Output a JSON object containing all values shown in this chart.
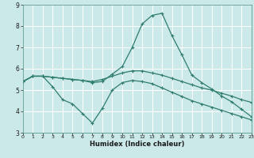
{
  "title": "",
  "xlabel": "Humidex (Indice chaleur)",
  "background_color": "#cce9e9",
  "grid_color": "#ffffff",
  "line_color": "#2e7d6e",
  "xlim": [
    0,
    23
  ],
  "ylim": [
    3,
    9
  ],
  "x_ticks": [
    0,
    1,
    2,
    3,
    4,
    5,
    6,
    7,
    8,
    9,
    10,
    11,
    12,
    13,
    14,
    15,
    16,
    17,
    18,
    19,
    20,
    21,
    22,
    23
  ],
  "y_ticks": [
    3,
    4,
    5,
    6,
    7,
    8,
    9
  ],
  "series": {
    "line1_x": [
      0,
      1,
      2,
      3,
      4,
      5,
      6,
      7,
      8,
      9,
      10,
      11,
      12,
      13,
      14,
      15,
      16,
      17,
      18,
      19,
      20,
      21,
      22,
      23
    ],
    "line1_y": [
      5.4,
      5.65,
      5.65,
      5.6,
      5.55,
      5.5,
      5.45,
      5.4,
      5.5,
      5.65,
      5.8,
      5.9,
      5.9,
      5.8,
      5.7,
      5.55,
      5.4,
      5.25,
      5.1,
      5.0,
      4.85,
      4.72,
      4.55,
      4.42
    ],
    "line2_x": [
      0,
      1,
      2,
      3,
      4,
      5,
      6,
      7,
      8,
      9,
      10,
      11,
      12,
      13,
      14,
      15,
      16,
      17,
      18,
      19,
      20,
      21,
      22,
      23
    ],
    "line2_y": [
      5.4,
      5.65,
      5.65,
      5.6,
      5.55,
      5.5,
      5.45,
      5.35,
      5.4,
      5.75,
      6.1,
      7.0,
      8.1,
      8.5,
      8.6,
      7.55,
      6.65,
      5.7,
      5.35,
      5.05,
      4.72,
      4.45,
      4.1,
      3.75
    ],
    "line3_x": [
      0,
      1,
      2,
      3,
      4,
      5,
      6,
      7,
      8,
      9,
      10,
      11,
      12,
      13,
      14,
      15,
      16,
      17,
      18,
      19,
      20,
      21,
      22,
      23
    ],
    "line3_y": [
      5.4,
      5.65,
      5.65,
      5.15,
      4.55,
      4.35,
      3.9,
      3.45,
      4.15,
      5.0,
      5.35,
      5.45,
      5.4,
      5.3,
      5.1,
      4.9,
      4.7,
      4.5,
      4.35,
      4.2,
      4.05,
      3.9,
      3.75,
      3.6
    ]
  }
}
